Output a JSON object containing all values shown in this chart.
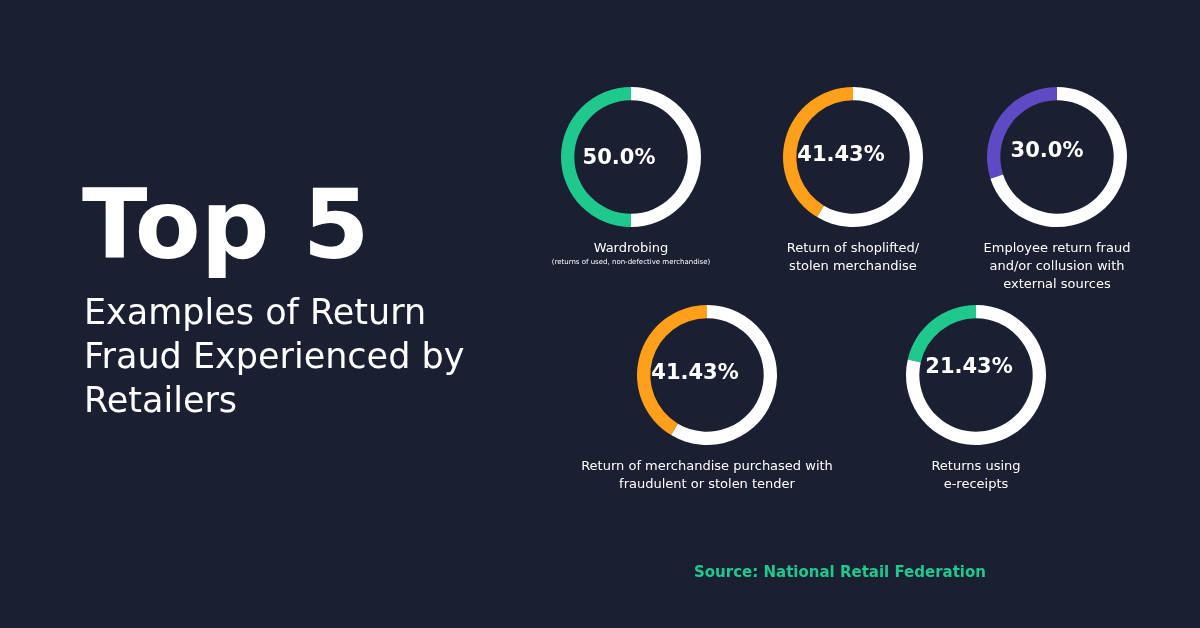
{
  "chart_data": [
    {
      "type": "other",
      "title": "Top 5",
      "subtitle": "Examples of Return Fraud Experienced by Retailers",
      "annotations": [
        "Source: National Retail Federation"
      ]
    },
    {
      "type": "donut",
      "title": "Wardrobing",
      "subtitle": "(returns of used, non-defective merchandise)",
      "categories": [
        null,
        null
      ],
      "values": [
        50,
        50
      ],
      "colors": [
        "#1fc98e",
        "#ffffff"
      ],
      "value_labels": [
        "50.0%",
        null
      ]
    },
    {
      "type": "donut",
      "title": "Return of shoplifted/ stolen merchandise",
      "categories": [
        null,
        null
      ],
      "values": [
        41.43,
        58.57
      ],
      "colors": [
        "#ff9f1a",
        "#ffffff"
      ],
      "value_labels": [
        "41.43%",
        null
      ]
    },
    {
      "type": "donut",
      "title": "Employee return fraud and/or collusion with external sources",
      "categories": [
        null,
        null
      ],
      "values": [
        30,
        70
      ],
      "colors": [
        "#5d4ac4",
        "#ffffff"
      ],
      "value_labels": [
        "30.0%",
        null
      ]
    },
    {
      "type": "donut",
      "title": "Return of merchandise purchased with fraudulent or stolen tender",
      "categories": [
        null,
        null
      ],
      "values": [
        41.43,
        58.57
      ],
      "colors": [
        "#ff9f1a",
        "#ffffff"
      ],
      "value_labels": [
        "41.43%",
        null
      ]
    },
    {
      "type": "donut",
      "title": "Returns using e-receipts",
      "categories": [
        null,
        null
      ],
      "values": [
        21.43,
        78.57
      ],
      "colors": [
        "#1fc98e",
        "#ffffff"
      ],
      "value_labels": [
        "21.43%",
        null
      ]
    }
  ]
}
